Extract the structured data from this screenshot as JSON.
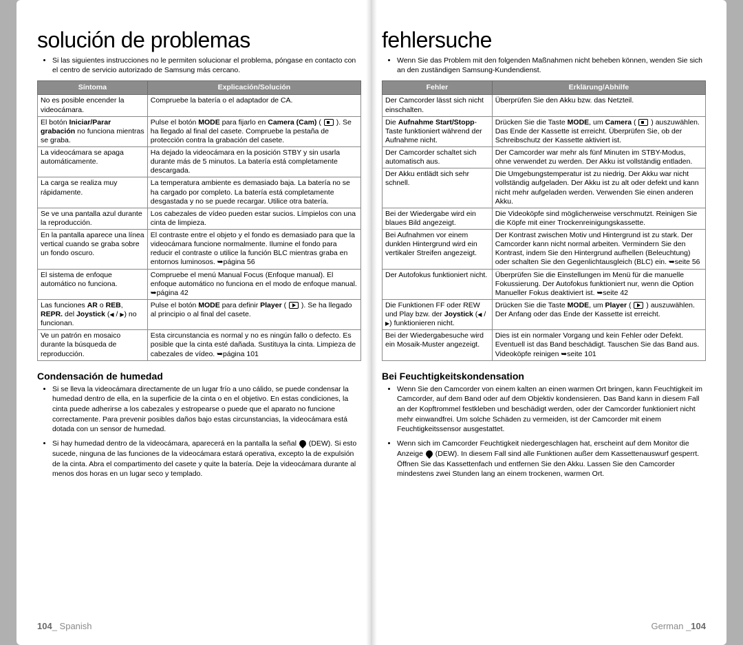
{
  "left": {
    "title": "solución de problemas",
    "intro": "Si las siguientes instrucciones no le permiten solucionar el problema, póngase en contacto con el centro de servicio autorizado de Samsung más cercano.",
    "table": {
      "head_symptom": "Síntoma",
      "head_explanation": "Explicación/Solución",
      "rows": [
        {
          "s": "No es posible encender la videocámara.",
          "e": "Compruebe la batería o el adaptador de CA."
        },
        {
          "s": "El botón <b>Iniciar/Parar grabación</b> no funciona mientras se graba.",
          "e": "Pulse el botón <b>MODE</b> para fijarlo en <b>Camera (Cam)</b> ( <span class='icon-box cam'></span> ). Se ha llegado al final del casete. Compruebe la pestaña de protección contra la grabación del casete."
        },
        {
          "s": "La videocámara se apaga automáticamente.",
          "e": "Ha dejado la videocámara en la posición STBY y sin usarla durante más de 5 minutos. La batería está completamente descargada."
        },
        {
          "s": "La carga se realiza muy rápidamente.",
          "e": "La temperatura ambiente es demasiado baja. La batería no se ha cargado por completo. La batería está completamente desgastada y no se puede recargar. Utilice otra batería."
        },
        {
          "s": "Se ve una pantalla azul durante la reproducción.",
          "e": "Los cabezales de vídeo pueden estar sucios. Límpielos con una cinta de limpieza."
        },
        {
          "s": "En la pantalla aparece una línea vertical cuando se graba sobre un fondo oscuro.",
          "e": "El contraste entre el objeto y el fondo es demasiado para que la videocámara funcione normalmente. Ilumine el fondo para reducir el contraste o utilice la función BLC mientras graba en entornos luminosos. ➥página 56"
        },
        {
          "s": "El sistema de enfoque automático no funciona.",
          "e": "Compruebe el menú Manual Focus (Enfoque manual). El enfoque automático no funciona en el modo de enfoque manual. ➥página 42"
        },
        {
          "s": "Las funciones <b>AR</b> o <b>REB</b>, <b>REPR.</b> del <b>Joystick</b> (<span class='tri-l'></span> / <span class='tri-r'></span>) no funcionan.",
          "e": "Pulse el botón <b>MODE</b> para definir <b>Player</b> ( <span class='icon-box play'></span> ). Se ha llegado al principio o al final del casete."
        },
        {
          "s": "Ve un patrón en mosaico durante la búsqueda de reproducción.",
          "e": "Esta circunstancia es normal y no es ningún fallo o defecto. Es posible que la cinta esté dañada. Sustituya la cinta. Limpieza de cabezales de vídeo. ➥página 101"
        }
      ]
    },
    "sub_heading": "Condensación de humedad",
    "body_items": [
      "Si se lleva la videocámara directamente de un lugar frío a uno cálido, se puede condensar la humedad dentro de ella, en la superficie de la cinta o en el objetivo. En estas condiciones, la cinta puede adherirse a los cabezales y estropearse o puede que el aparato no funcione correctamente. Para prevenir posibles daños bajo estas circunstancias, la videocámara está dotada con un sensor de humedad.",
      "Si hay humedad dentro de la videocámara, aparecerá en la pantalla la señal <span class='dew'></span> (DEW). Si esto sucede, ninguna de las funciones de la videocámara estará operativa, excepto la de expulsión de la cinta. Abra el compartimento del casete y quite la batería. Deje la videocámara durante al menos dos horas en un lugar seco y templado."
    ],
    "footer_num": "104",
    "footer_lang": "Spanish"
  },
  "right": {
    "title": "fehlersuche",
    "intro": "Wenn Sie das Problem mit den folgenden Maßnahmen nicht beheben können, wenden Sie sich an den zuständigen Samsung-Kundendienst.",
    "table": {
      "head_symptom": "Fehler",
      "head_explanation": "Erklärung/Abhilfe",
      "rows": [
        {
          "s": "Der Camcorder lässt sich nicht einschalten.",
          "e": "Überprüfen Sie den Akku bzw. das Netzteil."
        },
        {
          "s": "Die <b>Aufnahme Start/Stopp</b>-Taste funktioniert während der Aufnahme nicht.",
          "e": "Drücken Sie die Taste <b>MODE</b>, um <b>Camera</b> ( <span class='icon-box cam'></span> ) auszuwählen. Das Ende der Kassette ist erreicht. Überprüfen Sie, ob der Schreibschutz der Kassette aktiviert ist."
        },
        {
          "s": "Der Camcorder schaltet sich automatisch aus.",
          "e": "Der Camcorder war mehr als fünf Minuten im STBY-Modus, ohne verwendet zu werden. Der Akku ist vollständig entladen."
        },
        {
          "s": "Der Akku entlädt sich sehr schnell.",
          "e": "Die Umgebungstemperatur ist zu niedrig. Der Akku war nicht vollständig aufgeladen. Der Akku ist zu alt oder defekt und kann nicht mehr aufgeladen werden. Verwenden Sie einen anderen Akku."
        },
        {
          "s": "Bei der Wiedergabe wird ein blaues Bild angezeigt.",
          "e": "Die Videoköpfe sind möglicherweise verschmutzt. Reinigen Sie die Köpfe mit einer Trockenreinigungskassette."
        },
        {
          "s": "Bei Aufnahmen vor einem dunklen Hintergrund wird ein vertikaler Streifen angezeigt.",
          "e": "Der Kontrast zwischen Motiv und Hintergrund ist zu stark. Der Camcorder kann nicht normal arbeiten. Vermindern Sie den Kontrast, indem Sie den Hintergrund aufhellen (Beleuchtung) oder schalten Sie den Gegenlichtausgleich (BLC) ein. ➥seite 56"
        },
        {
          "s": "Der Autofokus funktioniert nicht.",
          "e": "Überprüfen Sie die Einstellungen im Menü für die manuelle Fokussierung. Der Autofokus funktioniert nur, wenn die Option Manueller Fokus deaktiviert ist. ➥seite 42"
        },
        {
          "s": "Die Funktionen FF oder REW und Play bzw. der <b>Joystick</b> (<span class='tri-l'></span> / <span class='tri-r'></span>) funktionieren nicht.",
          "e": "Drücken Sie die Taste <b>MODE</b>, um <b>Player</b> ( <span class='icon-box play'></span> ) auszuwählen. Der Anfang oder das Ende der Kassette ist erreicht."
        },
        {
          "s": "Bei der Wiedergabesuche wird ein Mosaik-Muster angezeigt.",
          "e": "Dies ist ein normaler Vorgang und kein Fehler oder Defekt. Eventuell ist das Band beschädigt. Tauschen Sie das Band aus. Videoköpfe reinigen ➥seite 101"
        }
      ]
    },
    "sub_heading": "Bei Feuchtigkeitskondensation",
    "body_items": [
      "Wenn Sie den Camcorder von einem kalten an einen warmen Ort bringen, kann Feuchtigkeit im Camcorder, auf dem Band oder auf dem Objektiv kondensieren. Das Band kann in diesem Fall an der Kopftrommel festkleben und beschädigt werden, oder der Camcorder funktioniert nicht mehr einwandfrei. Um solche Schäden zu vermeiden, ist der Camcorder mit einem Feuchtigkeitssensor ausgestattet.",
      "Wenn sich im Camcorder Feuchtigkeit niedergeschlagen hat, erscheint auf dem Monitor die Anzeige <span class='dew'></span> (DEW). In diesem Fall sind alle Funktionen außer dem Kassettenauswurf gesperrt. Öffnen Sie das Kassettenfach und entfernen Sie den Akku. Lassen Sie den Camcorder mindestens zwei Stunden lang an einem trockenen, warmen Ort."
    ],
    "footer_num": "104",
    "footer_lang": "German"
  }
}
